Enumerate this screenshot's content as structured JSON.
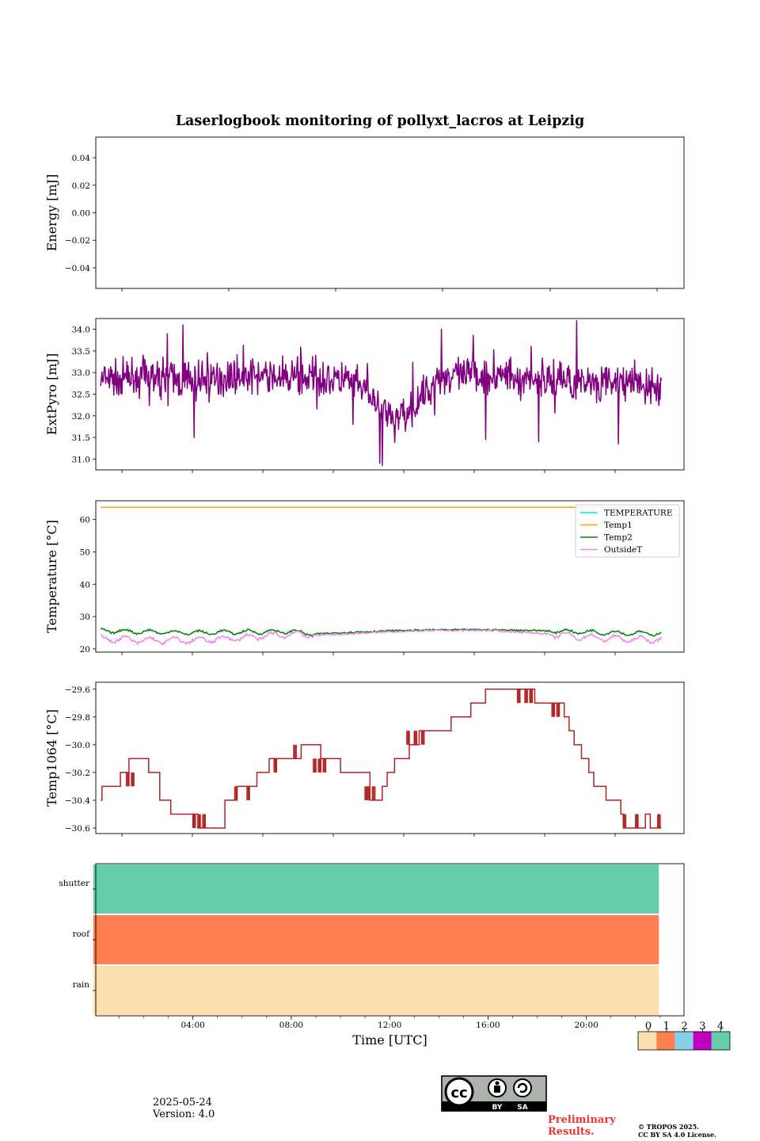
{
  "title": "Laserlogbook monitoring of pollyxt_lacros at Leipzig",
  "footer": {
    "date": "2025-05-24",
    "version": "Version: 4.0",
    "preliminary_line1": "Preliminary",
    "preliminary_line2": "Results.",
    "copyright_line1": "© TROPOS 2025.",
    "copyright_line2": "CC BY SA 4.0 License.",
    "cc_by": "BY",
    "cc_sa": "SA"
  },
  "chart_data": [
    {
      "type": "line",
      "id": "energy",
      "ylabel": "Energy [mJ]",
      "ylim": [
        -0.055,
        0.055
      ],
      "yticks": [
        0.04,
        0.02,
        0.0,
        -0.02,
        -0.04
      ],
      "ytick_labels": [
        "0.04",
        "0.02",
        "0.00",
        "−0.02",
        "−0.04"
      ],
      "series": []
    },
    {
      "type": "line",
      "id": "extpyro",
      "ylabel": "ExtPyro [mJ]",
      "ylim": [
        30.75,
        34.25
      ],
      "yticks": [
        34.0,
        33.5,
        33.0,
        32.5,
        32.0,
        31.5,
        31.0
      ],
      "ytick_labels": [
        "34.0",
        "33.5",
        "33.0",
        "32.5",
        "32.0",
        "31.5",
        "31.0"
      ],
      "color": "#800080",
      "baseline": {
        "x": [
          0,
          2.0,
          4.0,
          6.0,
          8.0,
          10.0,
          11.0,
          12.0,
          13.0,
          14.0,
          16.0,
          18.0,
          20.0,
          22.0,
          23.0
        ],
        "y": [
          32.8,
          32.9,
          32.8,
          32.95,
          32.9,
          32.85,
          32.6,
          31.9,
          32.2,
          32.9,
          32.95,
          32.85,
          32.8,
          32.75,
          32.6
        ]
      },
      "noise_amplitude": 0.32,
      "spikes": [
        [
          3.6,
          34.1
        ],
        [
          14.1,
          34.0
        ],
        [
          19.6,
          34.2
        ],
        [
          4.05,
          31.5
        ],
        [
          18.05,
          31.4
        ],
        [
          21.3,
          31.35
        ],
        [
          11.6,
          30.9
        ],
        [
          11.7,
          30.85
        ],
        [
          15.9,
          31.45
        ],
        [
          10.5,
          31.8
        ]
      ],
      "x_start": 0.25,
      "x_end": 23.05
    },
    {
      "type": "line",
      "id": "temperature",
      "ylabel": "Temperature [°C]",
      "ylim": [
        19,
        65.8
      ],
      "yticks": [
        60,
        50,
        40,
        30,
        20
      ],
      "ytick_labels": [
        "60",
        "50",
        "40",
        "30",
        "20"
      ],
      "legend": "top-right",
      "series": [
        {
          "name": "TEMPERATURE",
          "color": "#00e5e5",
          "x": [],
          "y": []
        },
        {
          "name": "Temp1",
          "color": "#ffa500",
          "x": [
            0.25,
            23.05
          ],
          "y": [
            63.8,
            63.8
          ]
        },
        {
          "name": "Temp2",
          "color": "#008000",
          "x": [
            0.25,
            2,
            4,
            6,
            8,
            9,
            10,
            12,
            14,
            16,
            18,
            20,
            22,
            23.05
          ],
          "y": [
            25.6,
            25.3,
            25.0,
            25.2,
            25.4,
            24.6,
            25.0,
            25.6,
            25.9,
            25.9,
            25.7,
            25.2,
            24.8,
            24.8
          ]
        },
        {
          "name": "OutsideT",
          "color": "#ee82ee",
          "x": [
            0.25,
            2,
            4,
            6,
            8,
            9,
            10,
            12,
            14,
            16,
            18,
            20,
            22,
            23.05
          ],
          "y": [
            23.2,
            22.6,
            22.6,
            23.4,
            24.6,
            24.3,
            24.5,
            25.3,
            25.7,
            25.7,
            24.9,
            23.6,
            22.9,
            22.9
          ]
        }
      ]
    },
    {
      "type": "line",
      "id": "temp1064",
      "ylabel": "Temp1064 [°C]",
      "ylim": [
        -30.64,
        -29.55
      ],
      "yticks": [
        -29.6,
        -29.8,
        -30.0,
        -30.2,
        -30.4,
        -30.6
      ],
      "ytick_labels": [
        "−29.6",
        "−29.8",
        "−30.0",
        "−30.2",
        "−30.4",
        "−30.6"
      ],
      "color": "#b22222",
      "x": [
        0.25,
        0.3,
        0.55,
        1.05,
        1.15,
        1.4,
        2.1,
        2.2,
        2.3,
        2.65,
        2.8,
        3.1,
        3.4,
        4.2,
        4.6,
        5.3,
        5.5,
        5.8,
        6.3,
        6.6,
        7.0,
        7.1,
        7.5,
        7.6,
        8.0,
        8.4,
        8.8,
        9.2,
        10.0,
        10.8,
        11.2,
        11.5,
        11.7,
        11.9,
        12.2,
        12.5,
        12.8,
        13.2,
        14.0,
        14.5,
        15.3,
        15.5,
        15.9,
        16.2,
        17.7,
        17.9,
        18.3,
        18.8,
        19.1,
        19.3,
        19.5,
        19.8,
        20.1,
        20.3,
        20.8,
        21.4,
        21.5,
        22.2,
        22.4,
        22.6,
        23.05
      ],
      "y": [
        -30.4,
        -30.3,
        -30.3,
        -30.2,
        -30.2,
        -30.1,
        -30.1,
        -30.2,
        -30.2,
        -30.4,
        -30.4,
        -30.5,
        -30.5,
        -30.6,
        -30.6,
        -30.4,
        -30.4,
        -30.3,
        -30.3,
        -30.2,
        -30.2,
        -30.1,
        -30.1,
        -30.1,
        -30.1,
        -30.0,
        -30.0,
        -30.1,
        -30.2,
        -30.2,
        -30.4,
        -30.4,
        -30.3,
        -30.2,
        -30.1,
        -30.1,
        -30.0,
        -29.9,
        -29.9,
        -29.8,
        -29.7,
        -29.7,
        -29.6,
        -29.6,
        -29.6,
        -29.7,
        -29.7,
        -29.7,
        -29.8,
        -29.9,
        -30.0,
        -30.1,
        -30.2,
        -30.3,
        -30.4,
        -30.5,
        -30.6,
        -30.6,
        -30.5,
        -30.6,
        -30.6
      ],
      "flicker": [
        [
          1.3,
          -30.2,
          -30.3
        ],
        [
          1.5,
          -30.2,
          -30.3
        ],
        [
          4.0,
          -30.5,
          -30.6
        ],
        [
          4.2,
          -30.5,
          -30.6
        ],
        [
          4.4,
          -30.5,
          -30.6
        ],
        [
          5.7,
          -30.3,
          -30.4
        ],
        [
          6.2,
          -30.3,
          -30.4
        ],
        [
          7.3,
          -30.1,
          -30.2
        ],
        [
          8.1,
          -30.0,
          -30.1
        ],
        [
          8.9,
          -30.1,
          -30.2
        ],
        [
          9.1,
          -30.1,
          -30.2
        ],
        [
          9.3,
          -30.1,
          -30.2
        ],
        [
          11.0,
          -30.3,
          -30.4
        ],
        [
          11.1,
          -30.3,
          -30.4
        ],
        [
          11.3,
          -30.3,
          -30.4
        ],
        [
          12.7,
          -29.9,
          -30.0
        ],
        [
          13.0,
          -29.9,
          -30.0
        ],
        [
          13.3,
          -29.9,
          -30.0
        ],
        [
          17.2,
          -29.6,
          -29.7
        ],
        [
          17.5,
          -29.6,
          -29.7
        ],
        [
          17.7,
          -29.6,
          -29.7
        ],
        [
          18.6,
          -29.7,
          -29.8
        ],
        [
          18.8,
          -29.7,
          -29.8
        ],
        [
          21.5,
          -30.5,
          -30.6
        ],
        [
          22.0,
          -30.5,
          -30.6
        ],
        [
          22.9,
          -30.5,
          -30.6
        ]
      ]
    },
    {
      "type": "heatmap",
      "id": "status",
      "rows": [
        "shutter",
        "roof",
        "rain"
      ],
      "row_values": [
        4,
        1,
        0
      ],
      "x_start": -0.05,
      "x_end": 22.95,
      "xlabel": "Time [UTC]",
      "xticks": [
        4,
        8,
        12,
        16,
        20
      ],
      "xtick_labels": [
        "04:00",
        "08:00",
        "12:00",
        "16:00",
        "20:00"
      ],
      "colorbar": {
        "ticks": [
          "0",
          "1",
          "2",
          "3",
          "4"
        ],
        "colors": [
          "#fddeae",
          "#ff7f50",
          "#87ceeb",
          "#c000c0",
          "#66cdaa"
        ]
      }
    }
  ]
}
